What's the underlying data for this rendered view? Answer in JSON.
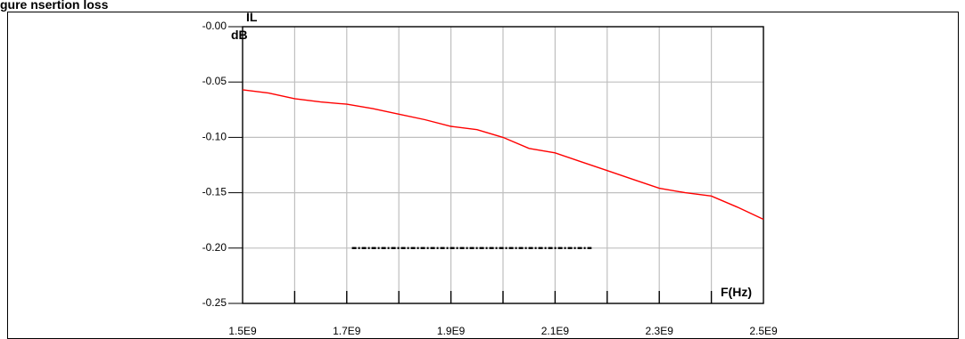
{
  "heading": "gure   nsertion loss",
  "colors": {
    "series": "#ff0000",
    "reference": "#000000",
    "grid": "#bfbfbf",
    "frame": "#000000"
  },
  "chart_data": {
    "type": "line",
    "title": "",
    "xlabel": "F(Hz)",
    "ylabel": "IL",
    "yunit": "dB",
    "xlim": [
      1500000000.0,
      2500000000.0
    ],
    "ylim": [
      -0.25,
      0.0
    ],
    "x_ticks": [
      1500000000.0,
      1700000000.0,
      1900000000.0,
      2100000000.0,
      2300000000.0,
      2500000000.0
    ],
    "x_tick_labels": [
      "1.5E9",
      "1.7E9",
      "1.9E9",
      "2.1E9",
      "2.3E9",
      "2.5E9"
    ],
    "y_ticks": [
      0.0,
      -0.05,
      -0.1,
      -0.15,
      -0.2,
      -0.25
    ],
    "y_tick_labels": [
      "-0.00",
      "-0.05",
      "-0.10",
      "-0.15",
      "-0.20",
      "-0.25"
    ],
    "grid": true,
    "series": [
      {
        "x": [
          1500000000.0,
          1550000000.0,
          1600000000.0,
          1650000000.0,
          1700000000.0,
          1750000000.0,
          1800000000.0,
          1850000000.0,
          1900000000.0,
          1950000000.0,
          2000000000.0,
          2050000000.0,
          2100000000.0,
          2150000000.0,
          2200000000.0,
          2250000000.0,
          2300000000.0,
          2350000000.0,
          2400000000.0,
          2450000000.0,
          2500000000.0
        ],
        "y": [
          -0.057,
          -0.06,
          -0.065,
          -0.068,
          -0.07,
          -0.074,
          -0.079,
          -0.084,
          -0.09,
          -0.093,
          -0.1,
          -0.11,
          -0.114,
          -0.122,
          -0.13,
          -0.138,
          -0.146,
          -0.15,
          -0.153,
          -0.163,
          -0.174
        ]
      },
      {
        "x": [
          1710000000.0,
          2170000000.0
        ],
        "y": [
          -0.2,
          -0.2
        ]
      }
    ]
  }
}
